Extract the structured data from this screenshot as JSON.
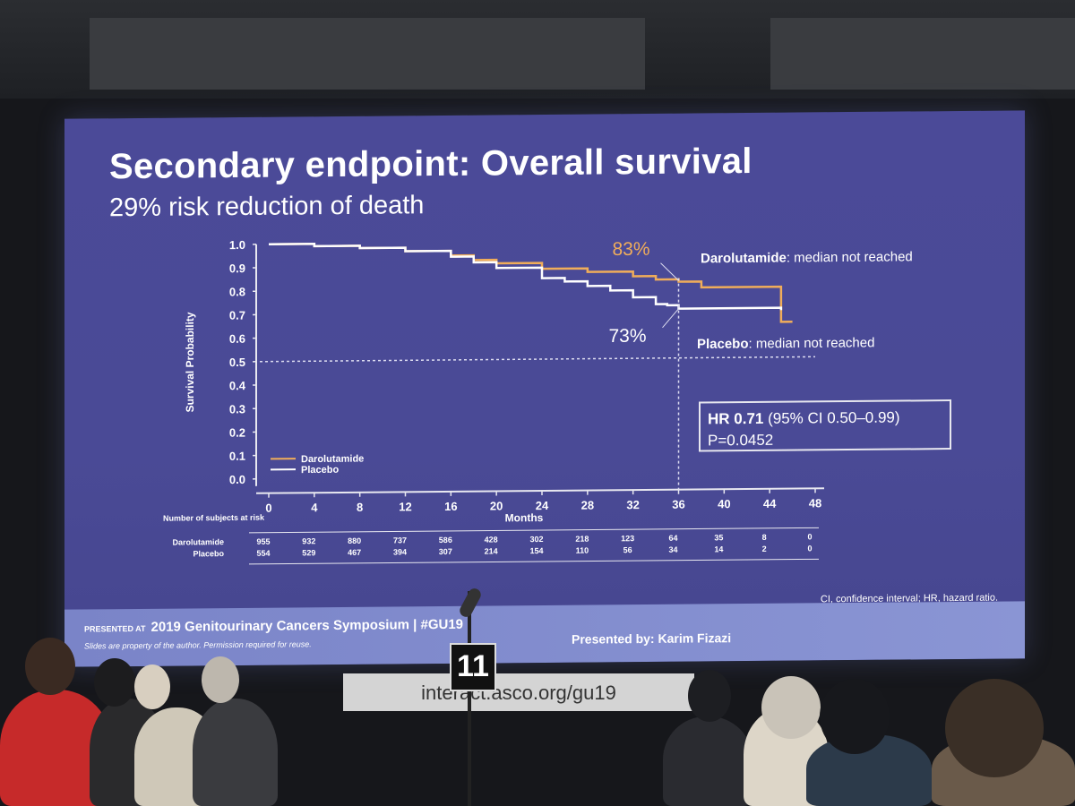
{
  "slide": {
    "title": "Secondary endpoint: Overall survival",
    "subtitle": "29% risk reduction of death"
  },
  "chart_data": {
    "type": "line",
    "xlabel": "Months",
    "ylabel": "Survival Probability",
    "x_ticks": [
      "0",
      "4",
      "8",
      "12",
      "16",
      "20",
      "24",
      "28",
      "32",
      "36",
      "40",
      "44",
      "48"
    ],
    "y_ticks": [
      "0.0",
      "0.1",
      "0.2",
      "0.3",
      "0.4",
      "0.5",
      "0.6",
      "0.7",
      "0.8",
      "0.9",
      "1.0"
    ],
    "xlim": [
      0,
      48
    ],
    "ylim": [
      0,
      1
    ],
    "series": [
      {
        "name": "Darolutamide",
        "color": "#f0ad5a",
        "x": [
          0,
          4,
          8,
          12,
          16,
          18,
          20,
          24,
          28,
          32,
          34,
          36,
          38,
          44,
          45,
          46
        ],
        "values": [
          1.0,
          0.99,
          0.98,
          0.965,
          0.945,
          0.925,
          0.91,
          0.885,
          0.87,
          0.85,
          0.835,
          0.825,
          0.8,
          0.8,
          0.65,
          0.65
        ]
      },
      {
        "name": "Placebo",
        "color": "#ffffff",
        "x": [
          0,
          4,
          8,
          12,
          16,
          18,
          20,
          24,
          26,
          28,
          30,
          32,
          34,
          35,
          36,
          44,
          45
        ],
        "values": [
          1.0,
          0.99,
          0.98,
          0.965,
          0.94,
          0.915,
          0.89,
          0.845,
          0.83,
          0.81,
          0.79,
          0.76,
          0.73,
          0.725,
          0.71,
          0.71,
          0.7
        ]
      }
    ],
    "annotations": {
      "darolutamide_pct": "83%",
      "placebo_pct": "73%",
      "darolutamide_note_bold": "Darolutamide",
      "darolutamide_note": ": median not reached",
      "placebo_note_bold": "Placebo",
      "placebo_note": ": median not reached",
      "reference_line_y": 0.5,
      "reference_line_x": 36
    },
    "legend": [
      "Darolutamide",
      "Placebo"
    ],
    "risk_table": {
      "title": "Number of subjects at risk",
      "rows": [
        {
          "label": "Darolutamide",
          "values": [
            "955",
            "932",
            "880",
            "737",
            "586",
            "428",
            "302",
            "218",
            "123",
            "64",
            "35",
            "8",
            "0"
          ]
        },
        {
          "label": "Placebo",
          "values": [
            "554",
            "529",
            "467",
            "394",
            "307",
            "214",
            "154",
            "110",
            "56",
            "34",
            "14",
            "2",
            "0"
          ]
        }
      ]
    }
  },
  "hr_box": {
    "hr_label": "HR 0.71",
    "ci": " (95% CI 0.50–0.99)",
    "p_value": "P=0.0452"
  },
  "footnote": "CI, confidence interval; HR, hazard ratio.",
  "footer": {
    "presented_at": "PRESENTED AT",
    "symposium": "2019 Genitourinary Cancers Symposium | #GU19",
    "disclaimer": "Slides are property of the author. Permission required for reuse.",
    "presenter": "Presented by: Karim Fizazi"
  },
  "room": {
    "lectern_number": "11",
    "banner": "interact.asco.org/gu19"
  },
  "colors": {
    "slide_bg": "#4a4a96",
    "darolutamide": "#f0ad5a",
    "placebo": "#ffffff"
  }
}
